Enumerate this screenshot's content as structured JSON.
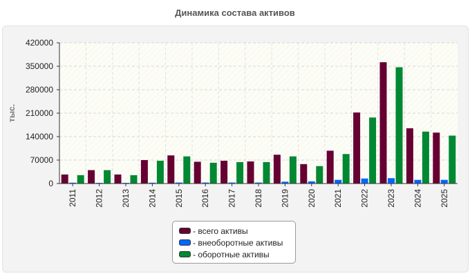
{
  "chart_data": {
    "type": "bar",
    "title": "Динамика состава активов",
    "ylabel": "тыс.",
    "xlabel": "",
    "ylim": [
      0,
      420000
    ],
    "yticks": [
      0,
      70000,
      140000,
      210000,
      280000,
      350000,
      420000
    ],
    "grid": true,
    "legend_position": "bottom-center",
    "categories": [
      "2011",
      "2012",
      "2013",
      "2014",
      "2015",
      "2016",
      "2017",
      "2018",
      "2019",
      "2020",
      "2021",
      "2022",
      "2023",
      "2024",
      "2025"
    ],
    "series": [
      {
        "name": "- всего активы",
        "color": "#660033",
        "values": [
          27000,
          40000,
          27000,
          70000,
          84000,
          65000,
          68000,
          66000,
          86000,
          58000,
          98000,
          212000,
          362000,
          165000,
          152000
        ]
      },
      {
        "name": "- внеоборотные активы",
        "color": "#0066ff",
        "values": [
          2500,
          2000,
          2000,
          2500,
          3000,
          3000,
          3000,
          3000,
          5500,
          6500,
          11000,
          15000,
          16000,
          11000,
          11000
        ]
      },
      {
        "name": "- оборотные активы",
        "color": "#008833",
        "values": [
          25000,
          40000,
          25000,
          68000,
          81000,
          62000,
          64000,
          64000,
          81000,
          52000,
          88000,
          197000,
          347000,
          155000,
          143000
        ]
      }
    ]
  }
}
